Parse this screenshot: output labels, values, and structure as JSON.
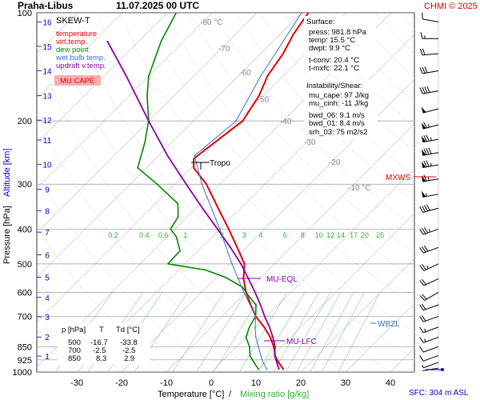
{
  "header": {
    "station": "Praha-Libus",
    "datetime": "11.07.2025 00 UTC",
    "credit": "CHMI © 2025"
  },
  "legend": {
    "title": "SKEW-T",
    "items": [
      {
        "label": "temperature",
        "color": "#e00000"
      },
      {
        "label": "virt.temp.",
        "color": "#e00000"
      },
      {
        "label": "dew point",
        "color": "#008800"
      },
      {
        "label": "wet bulb temp.",
        "color": "#3b6fd6"
      },
      {
        "label": "updraft v.temp.",
        "color": "#8800aa"
      }
    ],
    "badge": "MU CAPE",
    "badge_color": "#f7b0b0"
  },
  "surface": {
    "title": "Surface:",
    "lines": [
      "press: 981.8 hPa",
      "temp: 15.5 °C",
      "dwpt: 9.9 °C",
      "t-conv: 20.4 °C",
      "t-mxfc: 22.1 °C"
    ]
  },
  "instability": {
    "title": "Instability/Shear:",
    "lines": [
      "mu_cape: 97 J/kg",
      "mu_cinh: -11 J/kg",
      "bwd_06: 9.1 m/s",
      "bwd_01: 8.4 m/s",
      "srh_03: 75 m2/s2"
    ]
  },
  "table": {
    "headers": [
      "p [hPa]",
      "T",
      "Td [°C]"
    ],
    "rows": [
      [
        "500",
        "-16.7",
        "-33.8"
      ],
      [
        "700",
        "-2.5",
        "-2.5"
      ],
      [
        "850",
        "8.3",
        "2.9"
      ]
    ]
  },
  "annotations": {
    "tropo": "Tropo",
    "mxws": "MXWS",
    "mu_eql": "MU-EQL",
    "mu_lfc": "MU-LFC",
    "wbzl": "WBZL",
    "sfc": "SFC: 304 m ASL"
  },
  "axes": {
    "ylabel_pressure": "Pressure [hPa]",
    "ylabel_altitude": "Altitude [km]",
    "xlabel_temp": "Temperature [°C]",
    "xlabel_sep": "/",
    "xlabel_mix": "Mixing ratio [g/kg]"
  },
  "colors": {
    "temperature": "#e00000",
    "dewpoint": "#008800",
    "wetbulb": "#3b6fd6",
    "parcel": "#8800aa",
    "isotherm": "#bbbbbb",
    "mixing": "#7fd07f",
    "altitude": "#0000cc"
  },
  "chart_data": {
    "type": "line",
    "title": "Praha-Libus 11.07.2025 00 UTC",
    "xlabel": "Temperature [°C]",
    "ylabel": "Pressure [hPa]",
    "xlim": [
      -35,
      45
    ],
    "ylim": [
      1000,
      100
    ],
    "y_scale": "log",
    "pressure_ticks": [
      100,
      200,
      300,
      400,
      500,
      600,
      700,
      850,
      925,
      1000
    ],
    "temp_ticks": [
      -30,
      -20,
      -10,
      0,
      10,
      20,
      30,
      40
    ],
    "altitude_ticks": [
      {
        "km": 1,
        "p": 903
      },
      {
        "km": 2,
        "p": 799
      },
      {
        "km": 3,
        "p": 702
      },
      {
        "km": 4,
        "p": 620
      },
      {
        "km": 5,
        "p": 545
      },
      {
        "km": 6,
        "p": 472
      },
      {
        "km": 7,
        "p": 408
      },
      {
        "km": 8,
        "p": 356
      },
      {
        "km": 9,
        "p": 310
      },
      {
        "km": 10,
        "p": 264
      },
      {
        "km": 11,
        "p": 226
      },
      {
        "km": 12,
        "p": 199
      },
      {
        "km": 13,
        "p": 170
      },
      {
        "km": 14,
        "p": 145
      },
      {
        "km": 15,
        "p": 124
      },
      {
        "km": 16,
        "p": 106
      }
    ],
    "isotherm_labels": [
      {
        "t": -80,
        "p": 108,
        "label": "-80 °C"
      },
      {
        "t": -70,
        "p": 128,
        "label": "-70"
      },
      {
        "t": -60,
        "p": 149,
        "label": "-60"
      },
      {
        "t": -50,
        "p": 177,
        "label": "-50"
      },
      {
        "t": -40,
        "p": 204,
        "label": "-40"
      },
      {
        "t": -30,
        "p": 233,
        "label": "-30"
      },
      {
        "t": -20,
        "p": 265,
        "label": "-20"
      },
      {
        "t": -10,
        "p": 312,
        "label": "-10 °C"
      }
    ],
    "mixing_ratios": [
      "0.2",
      "0.4",
      "0.6",
      "1",
      "2",
      "3",
      "4",
      "6",
      "8",
      "10",
      "12",
      "14",
      "17",
      "20",
      "25"
    ],
    "series": [
      {
        "name": "temperature",
        "points": [
          {
            "p": 982,
            "t": 15.5
          },
          {
            "p": 950,
            "t": 13.5
          },
          {
            "p": 925,
            "t": 12.0
          },
          {
            "p": 900,
            "t": 10.6
          },
          {
            "p": 850,
            "t": 8.3
          },
          {
            "p": 800,
            "t": 5.4
          },
          {
            "p": 750,
            "t": 1.8
          },
          {
            "p": 700,
            "t": -2.5
          },
          {
            "p": 650,
            "t": -6.2
          },
          {
            "p": 600,
            "t": -10.0
          },
          {
            "p": 550,
            "t": -13.6
          },
          {
            "p": 500,
            "t": -16.7
          },
          {
            "p": 450,
            "t": -22.0
          },
          {
            "p": 400,
            "t": -28.0
          },
          {
            "p": 350,
            "t": -35.0
          },
          {
            "p": 300,
            "t": -43.0
          },
          {
            "p": 270,
            "t": -49.5
          },
          {
            "p": 255,
            "t": -51.5
          },
          {
            "p": 230,
            "t": -50.5
          },
          {
            "p": 200,
            "t": -49.0
          },
          {
            "p": 170,
            "t": -51.0
          },
          {
            "p": 150,
            "t": -53.5
          },
          {
            "p": 130,
            "t": -55.0
          },
          {
            "p": 115,
            "t": -57.0
          },
          {
            "p": 100,
            "t": -58.5
          }
        ]
      },
      {
        "name": "dew point",
        "points": [
          {
            "p": 982,
            "t": 9.9
          },
          {
            "p": 950,
            "t": 8.0
          },
          {
            "p": 925,
            "t": 6.5
          },
          {
            "p": 900,
            "t": 5.0
          },
          {
            "p": 850,
            "t": 2.9
          },
          {
            "p": 800,
            "t": 0.0
          },
          {
            "p": 750,
            "t": -1.5
          },
          {
            "p": 700,
            "t": -2.5
          },
          {
            "p": 650,
            "t": -5.0
          },
          {
            "p": 620,
            "t": -8.0
          },
          {
            "p": 580,
            "t": -12.0
          },
          {
            "p": 545,
            "t": -18.0
          },
          {
            "p": 520,
            "t": -24.0
          },
          {
            "p": 500,
            "t": -33.8
          },
          {
            "p": 460,
            "t": -34.0
          },
          {
            "p": 420,
            "t": -38.0
          },
          {
            "p": 400,
            "t": -41.0
          },
          {
            "p": 370,
            "t": -42.0
          },
          {
            "p": 340,
            "t": -45.0
          },
          {
            "p": 300,
            "t": -54.0
          },
          {
            "p": 270,
            "t": -62.0
          },
          {
            "p": 230,
            "t": -66.0
          },
          {
            "p": 200,
            "t": -70.0
          },
          {
            "p": 170,
            "t": -76.0
          },
          {
            "p": 150,
            "t": -80.0
          },
          {
            "p": 120,
            "t": -85.0
          },
          {
            "p": 100,
            "t": -88.0
          }
        ]
      },
      {
        "name": "wet bulb temp.",
        "points": [
          {
            "p": 982,
            "t": 11.8
          },
          {
            "p": 925,
            "t": 8.6
          },
          {
            "p": 850,
            "t": 4.9
          },
          {
            "p": 800,
            "t": 2.2
          },
          {
            "p": 750,
            "t": -0.2
          },
          {
            "p": 700,
            "t": -2.5
          },
          {
            "p": 600,
            "t": -10.5
          },
          {
            "p": 500,
            "t": -19.5
          },
          {
            "p": 400,
            "t": -30.0
          },
          {
            "p": 300,
            "t": -44.0
          },
          {
            "p": 250,
            "t": -52.0
          },
          {
            "p": 200,
            "t": -50.5
          },
          {
            "p": 150,
            "t": -55.0
          },
          {
            "p": 100,
            "t": -60.0
          }
        ]
      },
      {
        "name": "updraft v.temp.",
        "points": [
          {
            "p": 982,
            "t": 14.5
          },
          {
            "p": 900,
            "t": 10.5
          },
          {
            "p": 850,
            "t": 8.6
          },
          {
            "p": 800,
            "t": 6.0
          },
          {
            "p": 750,
            "t": 3.0
          },
          {
            "p": 700,
            "t": -0.5
          },
          {
            "p": 650,
            "t": -4.0
          },
          {
            "p": 600,
            "t": -8.0
          },
          {
            "p": 550,
            "t": -12.5
          },
          {
            "p": 500,
            "t": -17.5
          },
          {
            "p": 450,
            "t": -23.5
          },
          {
            "p": 400,
            "t": -30.5
          },
          {
            "p": 350,
            "t": -38.5
          },
          {
            "p": 300,
            "t": -47.5
          },
          {
            "p": 250,
            "t": -58.0
          },
          {
            "p": 200,
            "t": -70.0
          },
          {
            "p": 150,
            "t": -85.0
          },
          {
            "p": 120,
            "t": -97.0
          }
        ]
      }
    ],
    "winds": [
      {
        "p": 975,
        "dir": 260,
        "spd": 1
      },
      {
        "p": 940,
        "dir": 250,
        "spd": 3
      },
      {
        "p": 900,
        "dir": 250,
        "spd": 5
      },
      {
        "p": 850,
        "dir": 250,
        "spd": 7
      },
      {
        "p": 800,
        "dir": 250,
        "spd": 8
      },
      {
        "p": 750,
        "dir": 250,
        "spd": 8
      },
      {
        "p": 700,
        "dir": 250,
        "spd": 10
      },
      {
        "p": 650,
        "dir": 250,
        "spd": 10
      },
      {
        "p": 600,
        "dir": 240,
        "spd": 10
      },
      {
        "p": 550,
        "dir": 245,
        "spd": 12
      },
      {
        "p": 500,
        "dir": 245,
        "spd": 13
      },
      {
        "p": 450,
        "dir": 250,
        "spd": 15
      },
      {
        "p": 400,
        "dir": 250,
        "spd": 18
      },
      {
        "p": 350,
        "dir": 255,
        "spd": 22
      },
      {
        "p": 320,
        "dir": 260,
        "spd": 28
      },
      {
        "p": 290,
        "dir": 260,
        "spd": 33
      },
      {
        "p": 265,
        "dir": 260,
        "spd": 38
      },
      {
        "p": 245,
        "dir": 260,
        "spd": 40
      },
      {
        "p": 225,
        "dir": 260,
        "spd": 38
      },
      {
        "p": 205,
        "dir": 255,
        "spd": 33
      },
      {
        "p": 185,
        "dir": 255,
        "spd": 25
      },
      {
        "p": 165,
        "dir": 260,
        "spd": 20
      },
      {
        "p": 145,
        "dir": 260,
        "spd": 15
      },
      {
        "p": 130,
        "dir": 265,
        "spd": 10
      },
      {
        "p": 118,
        "dir": 270,
        "spd": 8
      },
      {
        "p": 106,
        "dir": 280,
        "spd": 5
      }
    ]
  }
}
